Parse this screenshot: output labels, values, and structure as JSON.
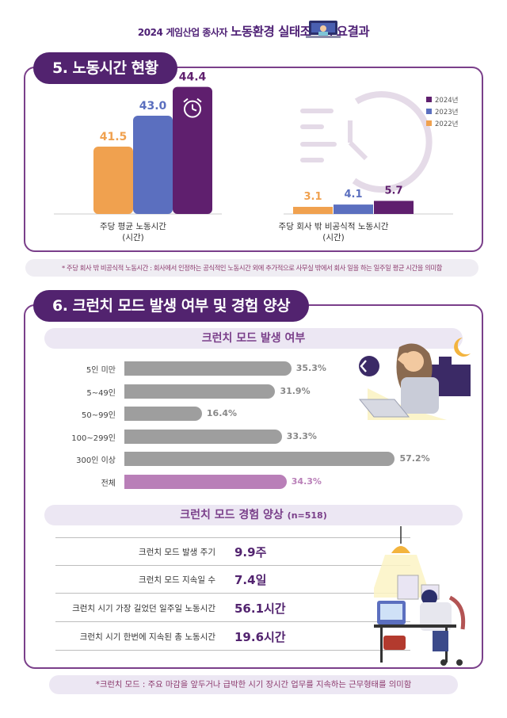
{
  "header": {
    "year": "2024",
    "prefix": "게임산업 종사자",
    "title": "노동환경 실태조사 주요결과"
  },
  "section5": {
    "title": "5. 노동시간 현황",
    "note": "* 주당 회사 밖 비공식적 노동시간 : 회사에서 인정하는 공식적인 노동시간 외에 추가적으로 사무실 밖에서 회사 일을 하는 일주일 평균 시간을 의미함"
  },
  "section6": {
    "title": "6. 크런치 모드 발생 여부 및 경험 양상",
    "sub1": "크런치 모드 발생 여부",
    "sub2": "크런치 모드 경험 양상",
    "sub2_n": "(n=518)",
    "experience": [
      {
        "label": "크런치 모드 발생 주기",
        "value": "9.9주"
      },
      {
        "label": "크런치 모드 지속일 수",
        "value": "7.4일"
      },
      {
        "label": "크런치 시기 가장 길었던 일주일 노동시간",
        "value": "56.1시간"
      },
      {
        "label": "크런치 시기 한번에 지속된 총 노동시간",
        "value": "19.6시간"
      }
    ],
    "note": "*크런치 모드 : 주요 마감을 앞두거나 급박한 시기 장시간 업무를 지속하는 근무형태를 의미함"
  },
  "colors": {
    "purple_dark": "#52236f",
    "purple_border": "#7a3f8a",
    "y2022": "#f0a14f",
    "y2023": "#5b6fbf",
    "y2024": "#5f1f6e",
    "gray_bar": "#9e9e9e",
    "total_bar": "#b97fb8"
  },
  "chart_data": [
    {
      "type": "bar",
      "categories": [
        "주당 평균 노동시간\n(시간)",
        "주당 회사 밖 비공식적 노동시간\n(시간)"
      ],
      "series": [
        {
          "name": "2022년",
          "values": [
            41.5,
            3.1
          ],
          "labels": [
            "41.5",
            "3.1"
          ]
        },
        {
          "name": "2023년",
          "values": [
            43.0,
            4.1
          ],
          "labels": [
            "43.0",
            "4.1"
          ]
        },
        {
          "name": "2024년",
          "values": [
            44.4,
            5.7
          ],
          "labels": [
            "44.4",
            "5.7"
          ]
        }
      ],
      "legend_order": [
        "2024년",
        "2023년",
        "2022년"
      ],
      "legend_position": "top-right",
      "grid": false
    },
    {
      "type": "bar",
      "orientation": "horizontal",
      "categories": [
        "5인 미만",
        "5~49인",
        "50~99인",
        "100~299인",
        "300인 이상",
        "전체"
      ],
      "values": [
        35.3,
        31.9,
        16.4,
        33.3,
        57.2,
        34.3
      ],
      "labels": [
        "35.3%",
        "31.9%",
        "16.4%",
        "33.3%",
        "57.2%",
        "34.3%"
      ],
      "highlight": "전체",
      "grid": false
    }
  ]
}
